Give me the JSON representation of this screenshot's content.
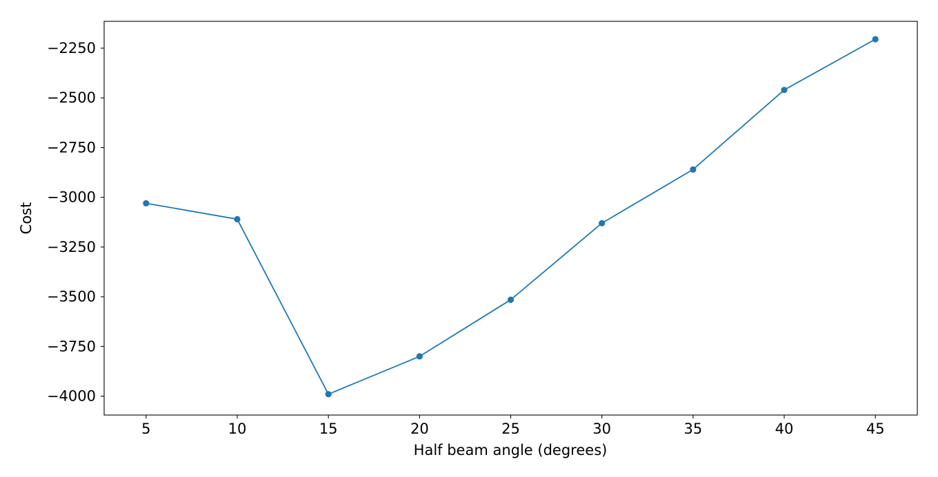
{
  "chart_data": {
    "type": "line",
    "title": "",
    "xlabel": "Half beam angle (degrees)",
    "ylabel": "Cost",
    "x": [
      5,
      10,
      15,
      20,
      25,
      30,
      35,
      40,
      45
    ],
    "series": [
      {
        "values": [
          -3030,
          -3110,
          -3990,
          -3800,
          -3515,
          -3130,
          -2860,
          -2460,
          -2205
        ],
        "color": "#1f77b4",
        "marker": "circle"
      }
    ],
    "xlim": [
      2.7,
      47.3
    ],
    "ylim": [
      -4095,
      -2115
    ],
    "xticks": [
      5,
      10,
      15,
      20,
      25,
      30,
      35,
      40,
      45
    ],
    "xtick_labels": [
      "5",
      "10",
      "15",
      "20",
      "25",
      "30",
      "35",
      "40",
      "45"
    ],
    "yticks": [
      -4000,
      -3750,
      -3500,
      -3250,
      -3000,
      -2750,
      -2500,
      -2250
    ],
    "ytick_labels": [
      "−4000",
      "−3750",
      "−3500",
      "−3250",
      "−3000",
      "−2750",
      "−2500",
      "−2250"
    ],
    "grid": false,
    "legend": "none"
  }
}
